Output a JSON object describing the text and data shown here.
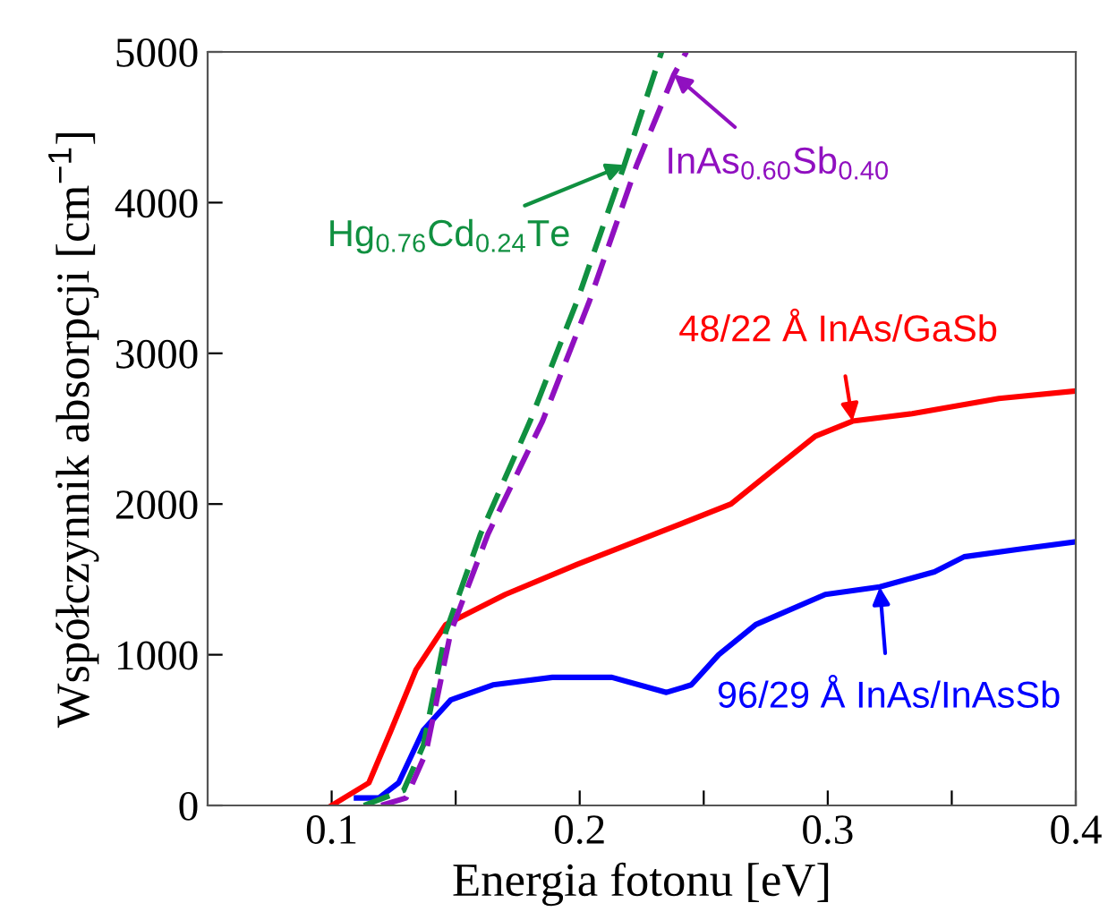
{
  "chart_data": {
    "type": "line",
    "xlabel": "Energia fotonu [eV]",
    "ylabel": "Współczynnik absorpcji [cm$^{−1}$]",
    "xlim": [
      0.05,
      0.4
    ],
    "ylim": [
      0,
      5000
    ],
    "xticks": [
      {
        "value": 0.1,
        "label": "0.1"
      },
      {
        "value": 0.15,
        "label": null
      },
      {
        "value": 0.2,
        "label": "0.2"
      },
      {
        "value": 0.25,
        "label": null
      },
      {
        "value": 0.3,
        "label": "0.3"
      },
      {
        "value": 0.35,
        "label": null
      },
      {
        "value": 0.4,
        "label": "0.4"
      }
    ],
    "yticks": [
      0,
      1000,
      2000,
      3000,
      4000,
      5000
    ],
    "grid": false,
    "legend": false,
    "series": [
      {
        "color": "#ff0000",
        "x": [
          0.1,
          0.115,
          0.124,
          0.134,
          0.146,
          0.17,
          0.199,
          0.238,
          0.261,
          0.276,
          0.295,
          0.31,
          0.334,
          0.369,
          0.4
        ],
        "values": [
          0,
          150,
          500,
          900,
          1200,
          1400,
          1600,
          1850,
          2000,
          2200,
          2450,
          2550,
          2600,
          2700,
          2750
        ]
      },
      {
        "color": "#0000ff",
        "x": [
          0.11,
          0.119,
          0.127,
          0.137,
          0.148,
          0.165,
          0.189,
          0.213,
          0.235,
          0.245,
          0.256,
          0.271,
          0.299,
          0.321,
          0.343,
          0.355,
          0.377,
          0.4
        ],
        "values": [
          50,
          50,
          150,
          500,
          700,
          800,
          850,
          850,
          750,
          800,
          1000,
          1200,
          1400,
          1450,
          1550,
          1650,
          1700,
          1750
        ]
      },
      {
        "color": "#109040",
        "line_style": "dashed",
        "x": [
          0.113,
          0.129,
          0.137,
          0.146,
          0.16,
          0.18,
          0.199,
          0.218,
          0.233
        ],
        "values": [
          0,
          100,
          400,
          1150,
          1800,
          2550,
          3350,
          4250,
          5000
        ]
      },
      {
        "color": "#9010c0",
        "line_style": "dashed",
        "x": [
          0.12,
          0.13,
          0.138,
          0.148,
          0.163,
          0.185,
          0.204,
          0.223,
          0.238,
          0.243
        ],
        "values": [
          0,
          50,
          350,
          1150,
          1800,
          2550,
          3350,
          4250,
          4850,
          5000
        ]
      }
    ],
    "annotations": [
      {
        "text": "48/22 Å InAs/GaSb",
        "x": 0.31,
        "y": 2550
      },
      {
        "text": "96/29 Å InAs/InAsSb",
        "x": 0.321,
        "y": 1450
      },
      {
        "text": "Hg$_{0.76}$Cd$_{0.24}$Te",
        "x": 0.218,
        "y": 4250
      },
      {
        "text": "InAs$_{0.60}$Sb$_{0.40}$",
        "x": 0.238,
        "y": 4850
      }
    ]
  }
}
